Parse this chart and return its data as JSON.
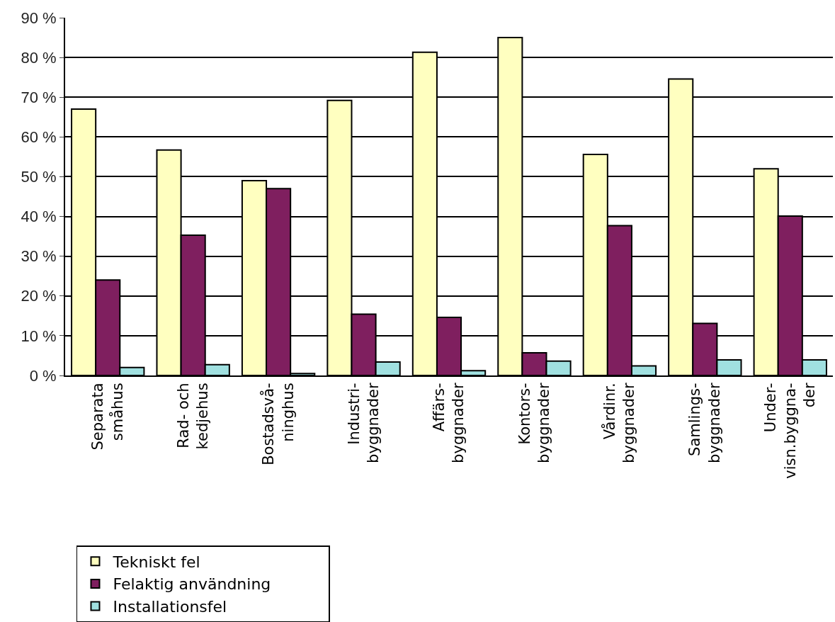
{
  "chart_data": {
    "type": "bar",
    "categories": [
      "Separata\nsmåhus",
      "Rad- och\nkedjehus",
      "Bostadsvå-\nninghus",
      "Industri-\nbyggnader",
      "Affärs-\nbyggnader",
      "Kontors-\nbyggnader",
      "Vårdinr.\nbyggnader",
      "Samlings-\nbyggnader",
      "Under-\nvisn.byggna-\nder"
    ],
    "series": [
      {
        "name": "Tekniskt fel",
        "color": "#ffffc0",
        "values": [
          67,
          56.7,
          49,
          69.2,
          81.3,
          85,
          55.6,
          74.6,
          52
        ]
      },
      {
        "name": "Felaktig användning",
        "color": "#7f1f5f",
        "values": [
          24,
          35.3,
          47,
          15.4,
          14.6,
          5.7,
          37.7,
          13.1,
          40.1
        ]
      },
      {
        "name": "Installationsfel",
        "color": "#a0e0e0",
        "values": [
          2,
          2.7,
          0.5,
          3.4,
          1.2,
          3.6,
          2.4,
          3.9,
          3.9
        ]
      }
    ],
    "ylim": [
      0,
      90
    ],
    "yticks": [
      {
        "value": 0,
        "label": "0 %"
      },
      {
        "value": 10,
        "label": "10 %"
      },
      {
        "value": 20,
        "label": "20 %"
      },
      {
        "value": 30,
        "label": "30 %"
      },
      {
        "value": 40,
        "label": "40 %"
      },
      {
        "value": 50,
        "label": "50 %"
      },
      {
        "value": 60,
        "label": "60 %"
      },
      {
        "value": 70,
        "label": "70 %"
      },
      {
        "value": 80,
        "label": "80 %"
      },
      {
        "value": 90,
        "label": "90 %"
      }
    ],
    "grid": "y",
    "legend": "bottom"
  }
}
